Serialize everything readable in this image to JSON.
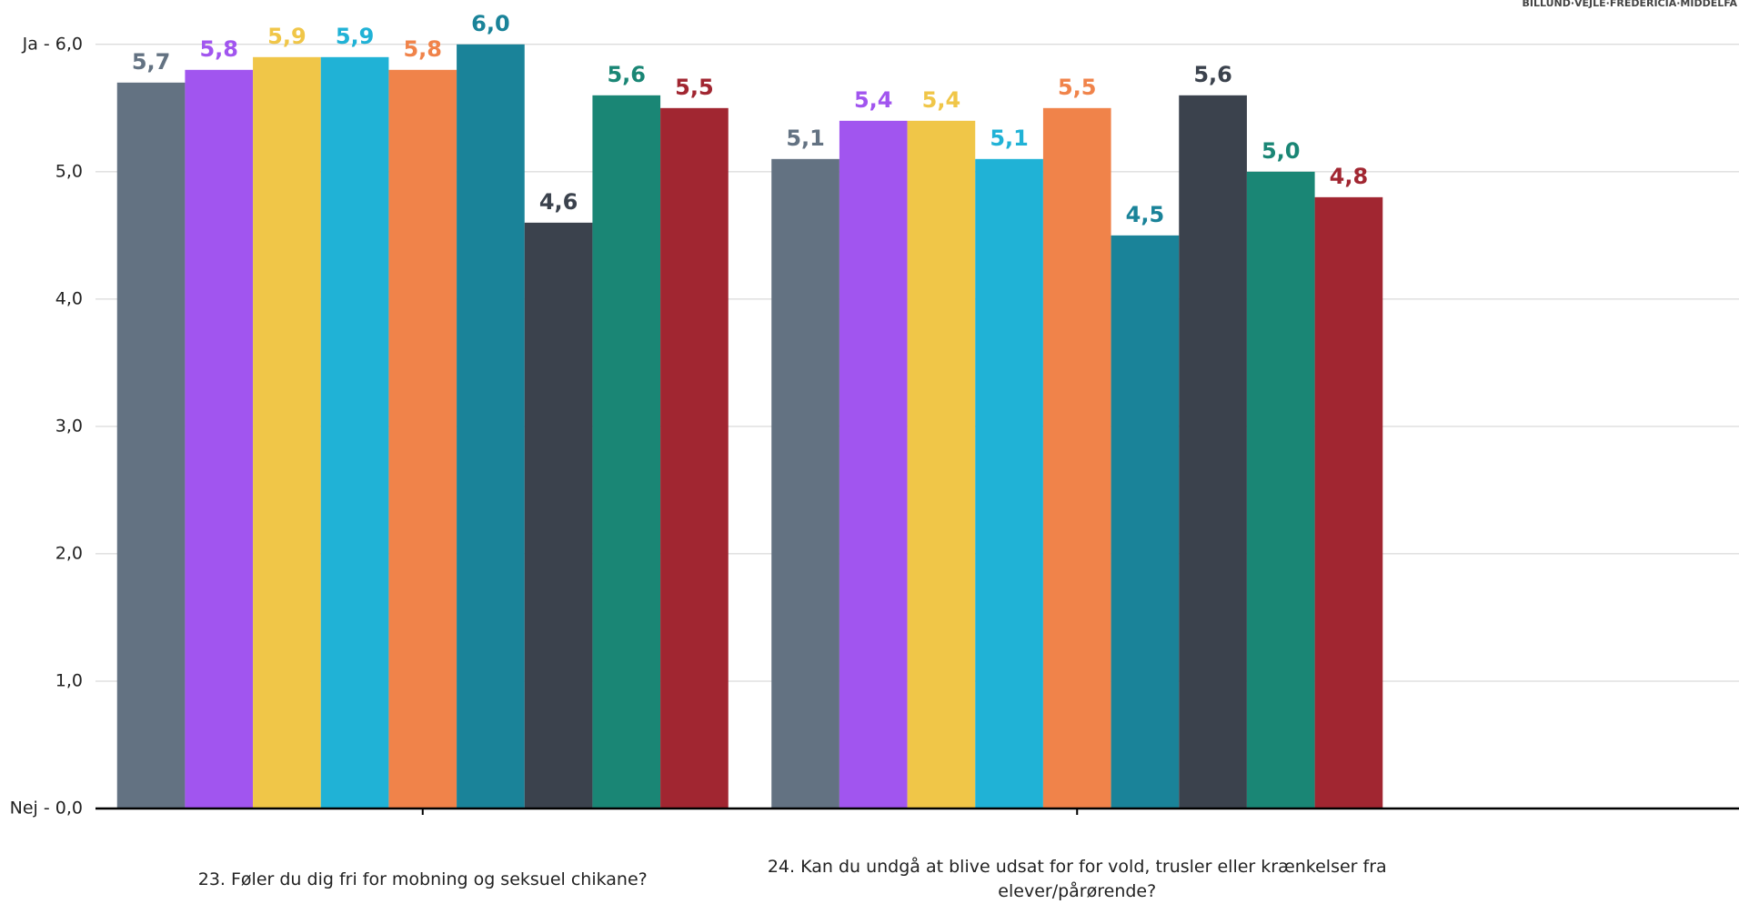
{
  "logo_text": "BILLUND·VEJLE·FREDERICIA·MIDDELFA",
  "chart_data": {
    "type": "bar",
    "categories": [
      "23. Føler du dig fri for mobning og seksuel chikane?",
      "24. Kan du undgå at blive udsat for for vold, trusler eller krænkelser fra elever/pårørende?"
    ],
    "series": [
      {
        "color": "#637282",
        "values": [
          5.7,
          5.1
        ],
        "value_labels": [
          "5,7",
          "5,1"
        ]
      },
      {
        "color": "#a155ef",
        "values": [
          5.8,
          5.4
        ],
        "value_labels": [
          "5,8",
          "5,4"
        ]
      },
      {
        "color": "#f0c648",
        "values": [
          5.9,
          5.4
        ],
        "value_labels": [
          "5,9",
          "5,4"
        ]
      },
      {
        "color": "#20b2d6",
        "values": [
          5.9,
          5.1
        ],
        "value_labels": [
          "5,9",
          "5,1"
        ]
      },
      {
        "color": "#f0834a",
        "values": [
          5.8,
          5.5
        ],
        "value_labels": [
          "5,8",
          "5,5"
        ]
      },
      {
        "color": "#1a8399",
        "values": [
          6.0,
          4.5
        ],
        "value_labels": [
          "6,0",
          "4,5"
        ]
      },
      {
        "color": "#3b424d",
        "values": [
          4.6,
          5.6
        ],
        "value_labels": [
          "4,6",
          "5,6"
        ]
      },
      {
        "color": "#1a8675",
        "values": [
          5.6,
          5.0
        ],
        "value_labels": [
          "5,6",
          "5,0"
        ]
      },
      {
        "color": "#a12631",
        "values": [
          5.5,
          4.8
        ],
        "value_labels": [
          "5,5",
          "4,8"
        ]
      }
    ],
    "ylim": [
      0,
      6
    ],
    "yticks": [
      {
        "value": 0,
        "label": "Nej - 0,0"
      },
      {
        "value": 1,
        "label": "1,0"
      },
      {
        "value": 2,
        "label": "2,0"
      },
      {
        "value": 3,
        "label": "3,0"
      },
      {
        "value": 4,
        "label": "4,0"
      },
      {
        "value": 5,
        "label": "5,0"
      },
      {
        "value": 6,
        "label": "Ja - 6,0"
      }
    ],
    "grid": true
  }
}
